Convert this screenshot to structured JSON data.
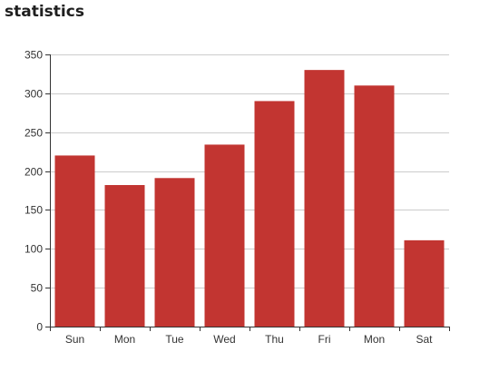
{
  "chart_data": {
    "type": "bar",
    "title": "statistics",
    "categories": [
      "Sun",
      "Mon",
      "Tue",
      "Wed",
      "Thu",
      "Fri",
      "Mon",
      "Sat"
    ],
    "values": [
      220,
      182,
      191,
      234,
      290,
      330,
      310,
      111
    ],
    "ylim": [
      0,
      350
    ],
    "yticks": [
      0,
      50,
      100,
      150,
      200,
      250,
      300,
      350
    ],
    "xlabel": "",
    "ylabel": "",
    "grid": true,
    "bar_color": "#c23531"
  }
}
